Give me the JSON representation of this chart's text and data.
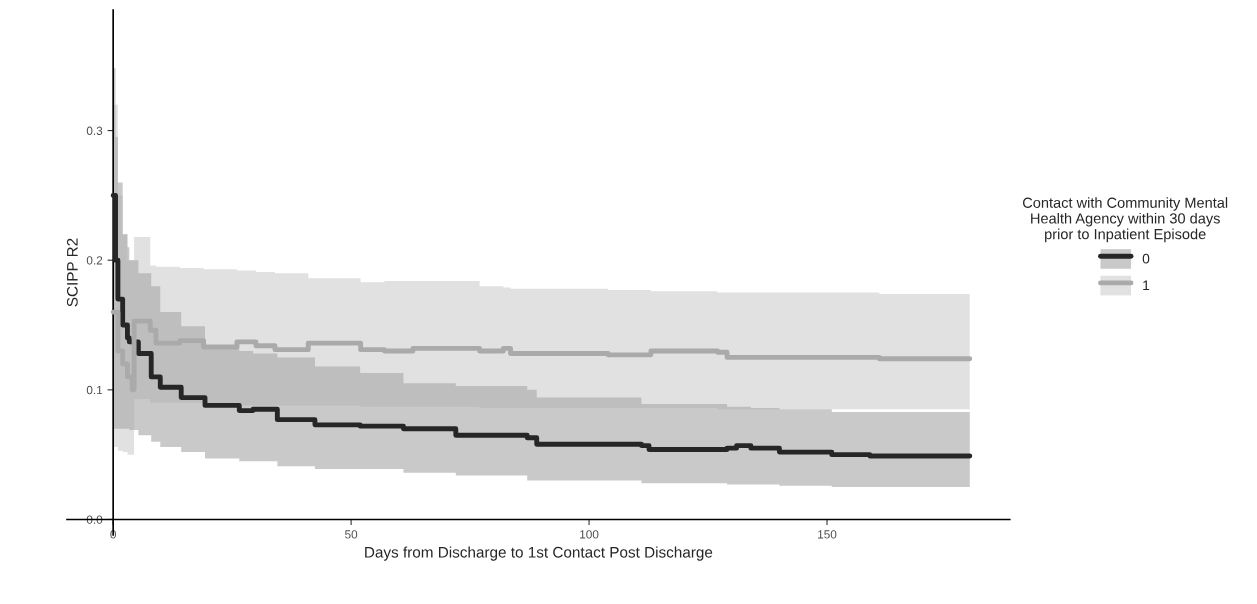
{
  "chart_data": {
    "type": "step",
    "xlabel": "Days from Discharge to 1st Contact Post Discharge",
    "ylabel": "SCIPP R2",
    "legend_title": "Contact with Community Mental\nHealth Agency within 30 days\nprior to Inpatient Episode",
    "xlim": [
      -9.7,
      188.4
    ],
    "ylim": [
      -0.012,
      0.393
    ],
    "xticks": [
      0,
      50,
      100,
      150
    ],
    "yticks": [
      {
        "value": 0,
        "label": "0.0"
      },
      0.1,
      0.2,
      0.3
    ],
    "grid": false,
    "legend": "right",
    "series": [
      {
        "name": "0",
        "color": "#262626",
        "x": [
          0,
          0.5,
          1,
          2,
          3,
          3.4,
          5.3,
          8,
          9.9,
          14.3,
          19.3,
          26.5,
          29.4,
          34.5,
          42.4,
          51.9,
          61,
          72,
          87,
          89,
          111,
          112.6,
          129,
          131,
          134,
          140,
          151,
          159,
          180
        ],
        "values": [
          0.25,
          0.2,
          0.17,
          0.15,
          0.14,
          0.137,
          0.128,
          0.11,
          0.102,
          0.094,
          0.088,
          0.084,
          0.085,
          0.077,
          0.073,
          0.072,
          0.07,
          0.065,
          0.063,
          0.058,
          0.057,
          0.054,
          0.055,
          0.057,
          0.055,
          0.052,
          0.05,
          0.049,
          0.049
        ],
        "lower": [
          0.07,
          0.07,
          0.07,
          0.07,
          0.07,
          0.069,
          0.065,
          0.06,
          0.056,
          0.052,
          0.047,
          0.045,
          0.045,
          0.041,
          0.039,
          0.039,
          0.036,
          0.034,
          0.03,
          0.03,
          0.028,
          0.028,
          0.027,
          0.027,
          0.027,
          0.026,
          0.025,
          0.025,
          0.025
        ],
        "upper": [
          0.348,
          0.295,
          0.26,
          0.22,
          0.21,
          0.2,
          0.19,
          0.18,
          0.16,
          0.149,
          0.135,
          0.13,
          0.128,
          0.125,
          0.118,
          0.113,
          0.105,
          0.103,
          0.1,
          0.094,
          0.089,
          0.089,
          0.087,
          0.087,
          0.086,
          0.085,
          0.083,
          0.083,
          0.082
        ]
      },
      {
        "name": "1",
        "color": "#aaaaaa",
        "x": [
          0,
          1,
          2,
          3,
          4,
          4.4,
          7.8,
          9,
          14,
          19,
          26,
          30,
          34,
          41,
          52,
          57,
          63,
          77,
          82,
          83.5,
          104,
          113,
          127,
          129,
          161,
          180
        ],
        "values": [
          0.16,
          0.13,
          0.12,
          0.11,
          0.1,
          0.153,
          0.146,
          0.136,
          0.138,
          0.133,
          0.137,
          0.134,
          0.131,
          0.136,
          0.131,
          0.13,
          0.132,
          0.13,
          0.132,
          0.128,
          0.127,
          0.13,
          0.129,
          0.125,
          0.124,
          0.124
        ],
        "lower": [
          0.056,
          0.053,
          0.052,
          0.05,
          0.05,
          0.093,
          0.09,
          0.09,
          0.09,
          0.089,
          0.088,
          0.088,
          0.088,
          0.088,
          0.087,
          0.087,
          0.087,
          0.086,
          0.086,
          0.086,
          0.086,
          0.086,
          0.085,
          0.085,
          0.085,
          0.084
        ],
        "upper": [
          0.32,
          0.25,
          0.22,
          0.2,
          0.2,
          0.218,
          0.196,
          0.195,
          0.194,
          0.193,
          0.192,
          0.191,
          0.19,
          0.186,
          0.183,
          0.184,
          0.184,
          0.18,
          0.179,
          0.178,
          0.177,
          0.176,
          0.175,
          0.175,
          0.174,
          0.173
        ]
      }
    ]
  }
}
